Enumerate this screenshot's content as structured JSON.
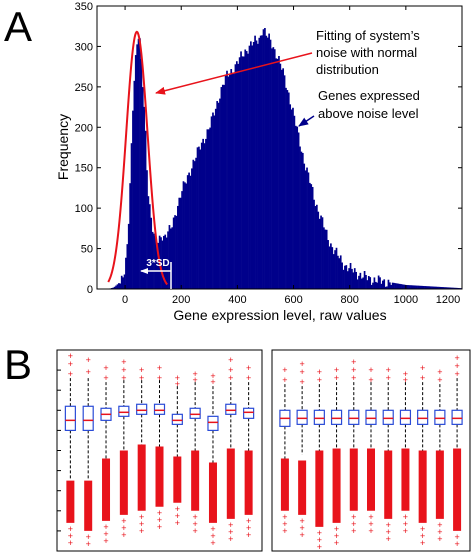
{
  "panels": {
    "a_label": "A",
    "b_label": "B"
  },
  "chart_data": [
    {
      "type": "bar",
      "panel": "A",
      "xlabel": "Gene expression level, raw values",
      "ylabel": "Frequency",
      "xlim": [
        -100,
        1200
      ],
      "ylim": [
        0,
        350
      ],
      "xticks": [
        0,
        200,
        400,
        600,
        800,
        1000,
        1200
      ],
      "yticks": [
        0,
        50,
        100,
        150,
        200,
        250,
        300,
        350
      ],
      "bar_color": "#00008b",
      "fit_color": "#e8131b",
      "noise_fit": {
        "mean": 42,
        "sd": 38,
        "peak": 318
      },
      "histogram_envelope": {
        "x": [
          -100,
          -80,
          -60,
          -40,
          -20,
          0,
          10,
          20,
          30,
          40,
          50,
          60,
          70,
          80,
          90,
          100,
          110,
          120,
          130,
          140,
          150,
          160,
          170,
          180,
          200,
          220,
          240,
          260,
          280,
          300,
          320,
          340,
          360,
          380,
          400,
          420,
          440,
          460,
          480,
          490,
          500,
          520,
          540,
          560,
          580,
          600,
          620,
          640,
          660,
          680,
          700,
          720,
          740,
          760,
          780,
          800,
          850,
          900,
          950,
          1000,
          1050,
          1100,
          1150,
          1200
        ],
        "y": [
          0,
          0,
          0,
          2,
          8,
          25,
          60,
          150,
          250,
          300,
          320,
          265,
          210,
          130,
          95,
          70,
          55,
          58,
          68,
          65,
          70,
          72,
          80,
          95,
          120,
          135,
          155,
          170,
          185,
          200,
          220,
          245,
          262,
          270,
          280,
          290,
          300,
          305,
          310,
          325,
          315,
          305,
          290,
          270,
          245,
          215,
          185,
          155,
          130,
          105,
          85,
          65,
          50,
          40,
          30,
          25,
          15,
          10,
          8,
          5,
          4,
          3,
          2,
          1
        ]
      },
      "annotations": [
        {
          "text_lines": [
            "Fitting of system’s",
            "noise with normal",
            "distribution"
          ],
          "color": "#e8131b"
        },
        {
          "text_lines": [
            "Genes expressed",
            "above noise level"
          ],
          "color": "#00008b"
        },
        {
          "text": "3*SD",
          "color": "#ffffff"
        }
      ]
    },
    {
      "type": "box",
      "panel": "B",
      "note": "Two box-plot panels without tick labels; values in arbitrary units (0 = bottom, 100 = top of axes)",
      "ylim": [
        0,
        100
      ],
      "outlier_color": "#e8131b",
      "box_color": "#2a4bd7",
      "median_color": "#e8131b",
      "left_panel": [
        {
          "q1": 60,
          "median": 65,
          "q3": 72,
          "whisker_low": 36,
          "whisker_high": 86,
          "out_high": [
            88,
            93,
            97
          ],
          "out_low_top": 35,
          "out_low_bottom": 14
        },
        {
          "q1": 60,
          "median": 65,
          "q3": 72,
          "whisker_low": 36,
          "whisker_high": 86,
          "out_high": [
            89,
            95
          ],
          "out_low_top": 35,
          "out_low_bottom": 10
        },
        {
          "q1": 65,
          "median": 68,
          "q3": 71,
          "whisker_low": 46,
          "whisker_high": 84,
          "out_high": [
            86,
            91
          ],
          "out_low_top": 46,
          "out_low_bottom": 15
        },
        {
          "q1": 67,
          "median": 69,
          "q3": 72,
          "whisker_low": 50,
          "whisker_high": 85,
          "out_high": [
            86,
            90,
            94
          ],
          "out_low_top": 50,
          "out_low_bottom": 18
        },
        {
          "q1": 68,
          "median": 70,
          "q3": 73,
          "whisker_low": 53,
          "whisker_high": 85,
          "out_high": [
            86,
            90
          ],
          "out_low_top": 53,
          "out_low_bottom": 20
        },
        {
          "q1": 68,
          "median": 70,
          "q3": 73,
          "whisker_low": 52,
          "whisker_high": 85,
          "out_high": [
            86,
            91
          ],
          "out_low_top": 52,
          "out_low_bottom": 22
        },
        {
          "q1": 63,
          "median": 65,
          "q3": 68,
          "whisker_low": 47,
          "whisker_high": 82,
          "out_high": [
            83,
            86
          ],
          "out_low_top": 47,
          "out_low_bottom": 24
        },
        {
          "q1": 66,
          "median": 68,
          "q3": 71,
          "whisker_low": 50,
          "whisker_high": 84,
          "out_high": [
            85,
            88
          ],
          "out_low_top": 50,
          "out_low_bottom": 20
        },
        {
          "q1": 60,
          "median": 64,
          "q3": 67,
          "whisker_low": 44,
          "whisker_high": 82,
          "out_high": [
            84,
            87
          ],
          "out_low_top": 44,
          "out_low_bottom": 14
        },
        {
          "q1": 68,
          "median": 70,
          "q3": 73,
          "whisker_low": 51,
          "whisker_high": 84,
          "out_high": [
            86,
            90,
            95
          ],
          "out_low_top": 51,
          "out_low_bottom": 16
        },
        {
          "q1": 66,
          "median": 69,
          "q3": 71,
          "whisker_low": 50,
          "whisker_high": 84,
          "out_high": [
            86,
            91
          ],
          "out_low_top": 50,
          "out_low_bottom": 18
        }
      ],
      "right_panel": [
        {
          "q1": 62,
          "median": 66,
          "q3": 70,
          "whisker_low": 46,
          "whisker_high": 83,
          "out_high": [
            85,
            90
          ],
          "out_low_top": 46,
          "out_low_bottom": 20
        },
        {
          "q1": 63,
          "median": 66,
          "q3": 70,
          "whisker_low": 48,
          "whisker_high": 82,
          "out_high": [
            84,
            89,
            93
          ],
          "out_low_top": 45,
          "out_low_bottom": 18
        },
        {
          "q1": 63,
          "median": 66,
          "q3": 70,
          "whisker_low": 50,
          "whisker_high": 83,
          "out_high": [
            85,
            89
          ],
          "out_low_top": 50,
          "out_low_bottom": 12
        },
        {
          "q1": 63,
          "median": 66,
          "q3": 70,
          "whisker_low": 51,
          "whisker_high": 84,
          "out_high": [
            86,
            90
          ],
          "out_low_top": 51,
          "out_low_bottom": 14
        },
        {
          "q1": 63,
          "median": 66,
          "q3": 70,
          "whisker_low": 51,
          "whisker_high": 84,
          "out_high": [
            86,
            90,
            94
          ],
          "out_low_top": 51,
          "out_low_bottom": 20
        },
        {
          "q1": 63,
          "median": 66,
          "q3": 70,
          "whisker_low": 51,
          "whisker_high": 84,
          "out_high": [
            85,
            90
          ],
          "out_low_top": 51,
          "out_low_bottom": 20
        },
        {
          "q1": 63,
          "median": 66,
          "q3": 70,
          "whisker_low": 50,
          "whisker_high": 84,
          "out_high": [
            86,
            90
          ],
          "out_low_top": 50,
          "out_low_bottom": 16
        },
        {
          "q1": 63,
          "median": 66,
          "q3": 70,
          "whisker_low": 51,
          "whisker_high": 84,
          "out_high": [
            85,
            88
          ],
          "out_low_top": 51,
          "out_low_bottom": 20
        },
        {
          "q1": 63,
          "median": 66,
          "q3": 70,
          "whisker_low": 50,
          "whisker_high": 84,
          "out_high": [
            86,
            91
          ],
          "out_low_top": 50,
          "out_low_bottom": 14
        },
        {
          "q1": 63,
          "median": 66,
          "q3": 70,
          "whisker_low": 50,
          "whisker_high": 83,
          "out_high": [
            85,
            89
          ],
          "out_low_top": 50,
          "out_low_bottom": 16
        },
        {
          "q1": 63,
          "median": 66,
          "q3": 70,
          "whisker_low": 51,
          "whisker_high": 86,
          "out_high": [
            88,
            92,
            96
          ],
          "out_low_top": 51,
          "out_low_bottom": 10
        }
      ]
    }
  ]
}
